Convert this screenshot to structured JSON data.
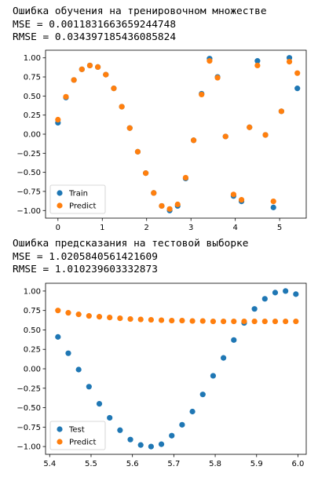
{
  "cell1": {
    "title": "Ошибка обучения на тренировочном множестве",
    "mse": "MSE = 0.0011831663659244748",
    "rmse": "RMSE = 0.034397185436085824"
  },
  "cell2": {
    "title": "Ошибка предсказания на тестовой выборке",
    "mse": "MSE = 1.0205840561421609",
    "rmse": "RMSE = 1.010239603332873"
  },
  "colors": {
    "series1": "#1f77b4",
    "series2": "#ff7f0e"
  },
  "chart_data": [
    {
      "type": "scatter",
      "title": "",
      "xlabel": "",
      "ylabel": "",
      "xlim": [
        -0.28,
        5.6
      ],
      "ylim": [
        -1.1,
        1.1
      ],
      "xticks": [
        0,
        1,
        2,
        3,
        4,
        5
      ],
      "yticks": [
        1.0,
        0.75,
        0.5,
        0.25,
        0.0,
        -0.25,
        -0.5,
        -0.75,
        -1.0
      ],
      "xtick_labels": [
        "0",
        "1",
        "2",
        "3",
        "4",
        "5"
      ],
      "ytick_labels": [
        "1.00",
        "0.75",
        "0.50",
        "0.25",
        "0.00",
        "−0.25",
        "−0.50",
        "−0.75",
        "−1.00"
      ],
      "grid": false,
      "legend": "lower-left",
      "series": [
        {
          "name": "Train",
          "points": [
            [
              0.0,
              0.15
            ],
            [
              0.18,
              0.48
            ],
            [
              0.36,
              0.71
            ],
            [
              0.54,
              0.85
            ],
            [
              0.72,
              0.9
            ],
            [
              0.9,
              0.88
            ],
            [
              1.08,
              0.78
            ],
            [
              1.26,
              0.6
            ],
            [
              1.44,
              0.36
            ],
            [
              1.62,
              0.08
            ],
            [
              1.8,
              -0.23
            ],
            [
              1.98,
              -0.51
            ],
            [
              2.16,
              -0.77
            ],
            [
              2.34,
              -0.94
            ],
            [
              2.52,
              -1.0
            ],
            [
              2.7,
              -0.94
            ],
            [
              2.88,
              -0.58
            ],
            [
              3.06,
              -0.08
            ],
            [
              3.24,
              0.53
            ],
            [
              3.42,
              0.99
            ],
            [
              3.6,
              0.75
            ],
            [
              3.78,
              -0.03
            ],
            [
              3.96,
              -0.81
            ],
            [
              4.14,
              -0.88
            ],
            [
              4.32,
              0.09
            ],
            [
              4.5,
              0.96
            ],
            [
              4.68,
              -0.01
            ],
            [
              4.86,
              -0.96
            ],
            [
              5.04,
              0.3
            ],
            [
              5.22,
              1.0
            ],
            [
              5.4,
              0.6
            ]
          ]
        },
        {
          "name": "Predict",
          "points": [
            [
              0.0,
              0.19
            ],
            [
              0.18,
              0.49
            ],
            [
              0.36,
              0.71
            ],
            [
              0.54,
              0.85
            ],
            [
              0.72,
              0.9
            ],
            [
              0.9,
              0.88
            ],
            [
              1.08,
              0.78
            ],
            [
              1.26,
              0.6
            ],
            [
              1.44,
              0.36
            ],
            [
              1.62,
              0.08
            ],
            [
              1.8,
              -0.23
            ],
            [
              1.98,
              -0.51
            ],
            [
              2.16,
              -0.77
            ],
            [
              2.34,
              -0.94
            ],
            [
              2.52,
              -0.98
            ],
            [
              2.7,
              -0.92
            ],
            [
              2.88,
              -0.57
            ],
            [
              3.06,
              -0.08
            ],
            [
              3.24,
              0.52
            ],
            [
              3.42,
              0.96
            ],
            [
              3.6,
              0.74
            ],
            [
              3.78,
              -0.03
            ],
            [
              3.96,
              -0.79
            ],
            [
              4.14,
              -0.86
            ],
            [
              4.32,
              0.09
            ],
            [
              4.5,
              0.9
            ],
            [
              4.68,
              -0.01
            ],
            [
              4.86,
              -0.88
            ],
            [
              5.04,
              0.3
            ],
            [
              5.22,
              0.95
            ],
            [
              5.4,
              0.8
            ]
          ]
        }
      ]
    },
    {
      "type": "scatter",
      "title": "",
      "xlabel": "",
      "ylabel": "",
      "xlim": [
        5.39,
        6.02
      ],
      "ylim": [
        -1.1,
        1.1
      ],
      "xticks": [
        5.4,
        5.5,
        5.6,
        5.7,
        5.8,
        5.9,
        6.0
      ],
      "yticks": [
        1.0,
        0.75,
        0.5,
        0.25,
        0.0,
        -0.25,
        -0.5,
        -0.75,
        -1.0
      ],
      "xtick_labels": [
        "5.4",
        "5.5",
        "5.6",
        "5.7",
        "5.8",
        "5.9",
        "6.0"
      ],
      "ytick_labels": [
        "1.00",
        "0.75",
        "0.50",
        "0.25",
        "0.00",
        "−0.25",
        "−0.50",
        "−0.75",
        "−1.00"
      ],
      "grid": false,
      "legend": "lower-left",
      "series": [
        {
          "name": "Test",
          "points": [
            [
              5.42,
              0.41
            ],
            [
              5.445,
              0.2
            ],
            [
              5.47,
              -0.01
            ],
            [
              5.495,
              -0.23
            ],
            [
              5.52,
              -0.45
            ],
            [
              5.545,
              -0.63
            ],
            [
              5.57,
              -0.79
            ],
            [
              5.595,
              -0.91
            ],
            [
              5.62,
              -0.98
            ],
            [
              5.645,
              -1.0
            ],
            [
              5.67,
              -0.97
            ],
            [
              5.695,
              -0.86
            ],
            [
              5.72,
              -0.72
            ],
            [
              5.745,
              -0.55
            ],
            [
              5.77,
              -0.33
            ],
            [
              5.795,
              -0.09
            ],
            [
              5.82,
              0.14
            ],
            [
              5.845,
              0.37
            ],
            [
              5.87,
              0.59
            ],
            [
              5.895,
              0.77
            ],
            [
              5.92,
              0.9
            ],
            [
              5.945,
              0.98
            ],
            [
              5.97,
              1.0
            ],
            [
              5.995,
              0.96
            ]
          ]
        },
        {
          "name": "Predict",
          "points": [
            [
              5.42,
              0.75
            ],
            [
              5.445,
              0.72
            ],
            [
              5.47,
              0.7
            ],
            [
              5.495,
              0.68
            ],
            [
              5.52,
              0.67
            ],
            [
              5.545,
              0.66
            ],
            [
              5.57,
              0.65
            ],
            [
              5.595,
              0.64
            ],
            [
              5.62,
              0.635
            ],
            [
              5.645,
              0.63
            ],
            [
              5.67,
              0.625
            ],
            [
              5.695,
              0.62
            ],
            [
              5.72,
              0.62
            ],
            [
              5.745,
              0.615
            ],
            [
              5.77,
              0.615
            ],
            [
              5.795,
              0.61
            ],
            [
              5.82,
              0.61
            ],
            [
              5.845,
              0.61
            ],
            [
              5.87,
              0.61
            ],
            [
              5.895,
              0.61
            ],
            [
              5.92,
              0.61
            ],
            [
              5.945,
              0.61
            ],
            [
              5.97,
              0.61
            ],
            [
              5.995,
              0.61
            ]
          ]
        }
      ]
    }
  ]
}
